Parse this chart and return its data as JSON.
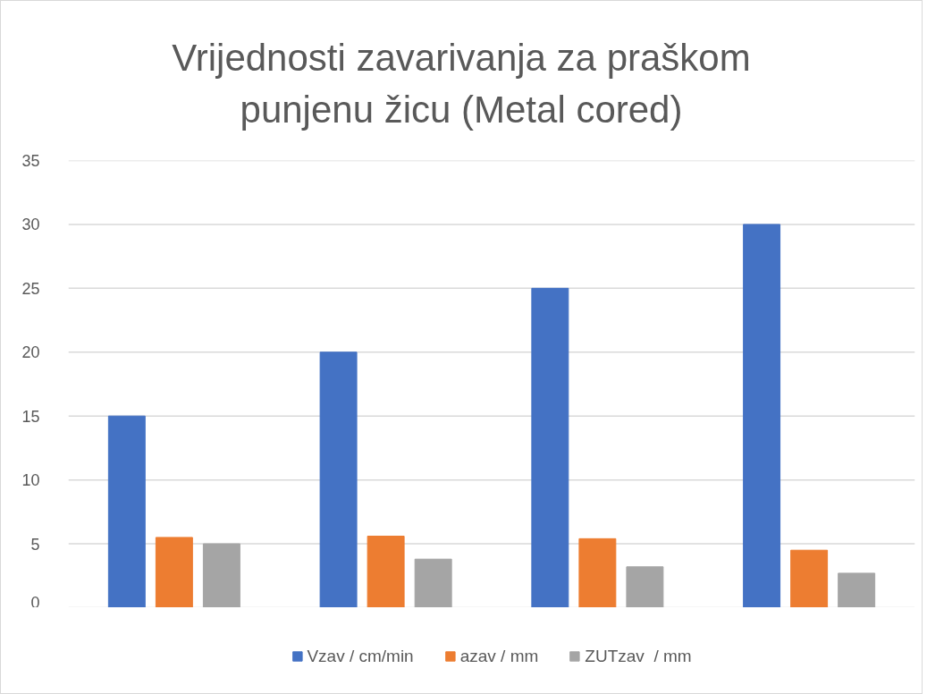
{
  "chart_data": {
    "type": "bar",
    "title": "Vrijednosti zavarivanja za praškom punjenu žicu (Metal cored)",
    "categories": [
      null,
      null,
      null,
      null
    ],
    "series": [
      {
        "name": "Vzav / cm/min",
        "color": "#4472c4",
        "values": [
          15,
          20,
          25,
          30
        ]
      },
      {
        "name": "azav / mm",
        "color": "#ed7d31",
        "values": [
          5.5,
          5.6,
          5.4,
          4.5
        ]
      },
      {
        "name": "ZUTzav  / mm",
        "color": "#a5a5a5",
        "values": [
          5.0,
          3.8,
          3.2,
          2.7
        ]
      }
    ],
    "ylim": [
      0,
      35
    ],
    "yticks": [
      0,
      5,
      10,
      15,
      20,
      25,
      30,
      35
    ],
    "grid": "y",
    "legend": "bottom"
  }
}
